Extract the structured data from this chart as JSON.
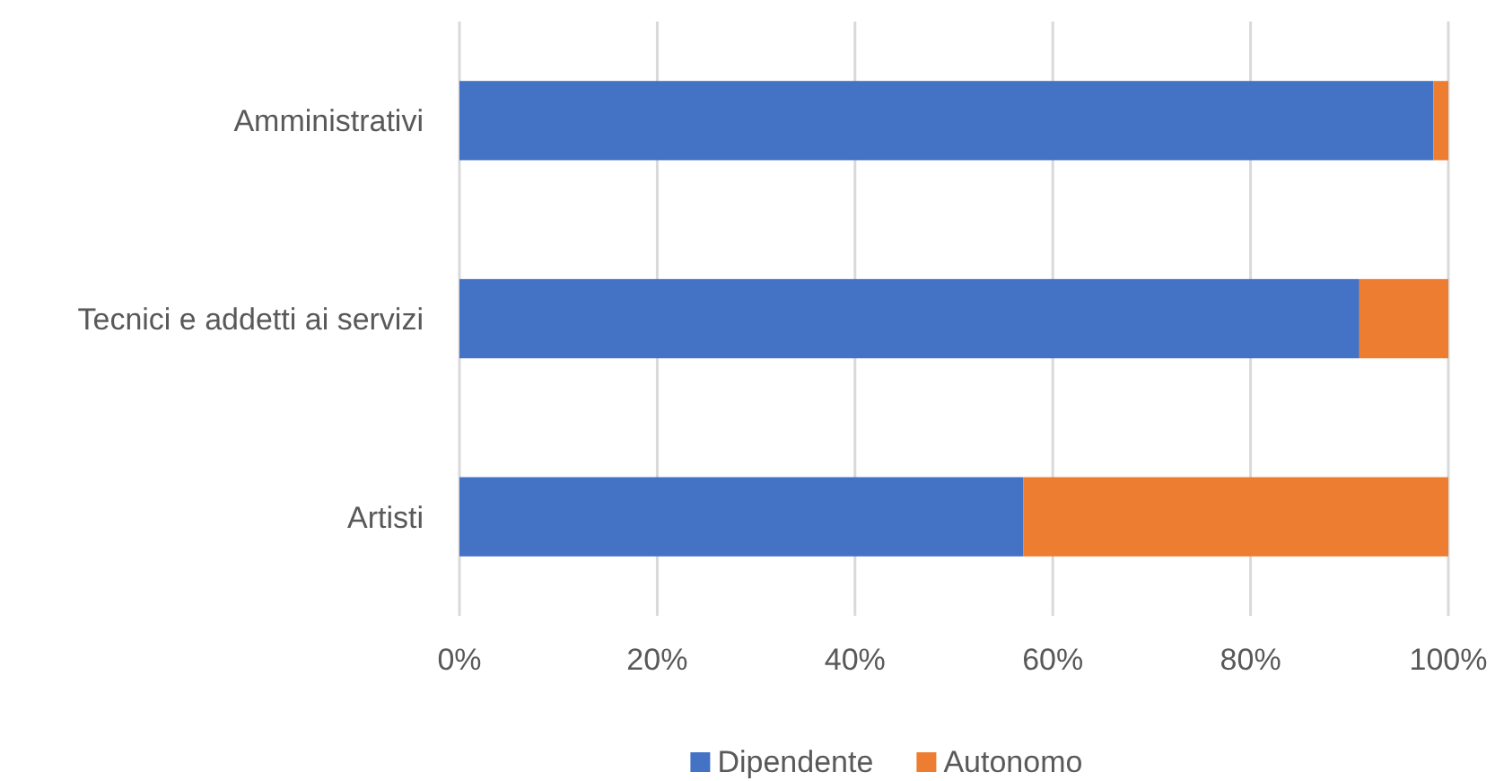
{
  "chart_data": {
    "type": "bar",
    "orientation": "horizontal",
    "stacked": true,
    "categories": [
      "Amministrativi",
      "Tecnici e addetti ai servizi",
      "Artisti"
    ],
    "series": [
      {
        "name": "Dipendente",
        "color": "#4472c4",
        "values": [
          98.5,
          91,
          57
        ]
      },
      {
        "name": "Autonomo",
        "color": "#ed7d31",
        "values": [
          1.5,
          9,
          43
        ]
      }
    ],
    "xlim": [
      0,
      100
    ],
    "xticks": [
      {
        "value": 0,
        "label": "0%"
      },
      {
        "value": 20,
        "label": "20%"
      },
      {
        "value": 40,
        "label": "40%"
      },
      {
        "value": 60,
        "label": "60%"
      },
      {
        "value": 80,
        "label": "80%"
      },
      {
        "value": 100,
        "label": "100%"
      }
    ],
    "grid": "x",
    "legend": "bottom"
  }
}
